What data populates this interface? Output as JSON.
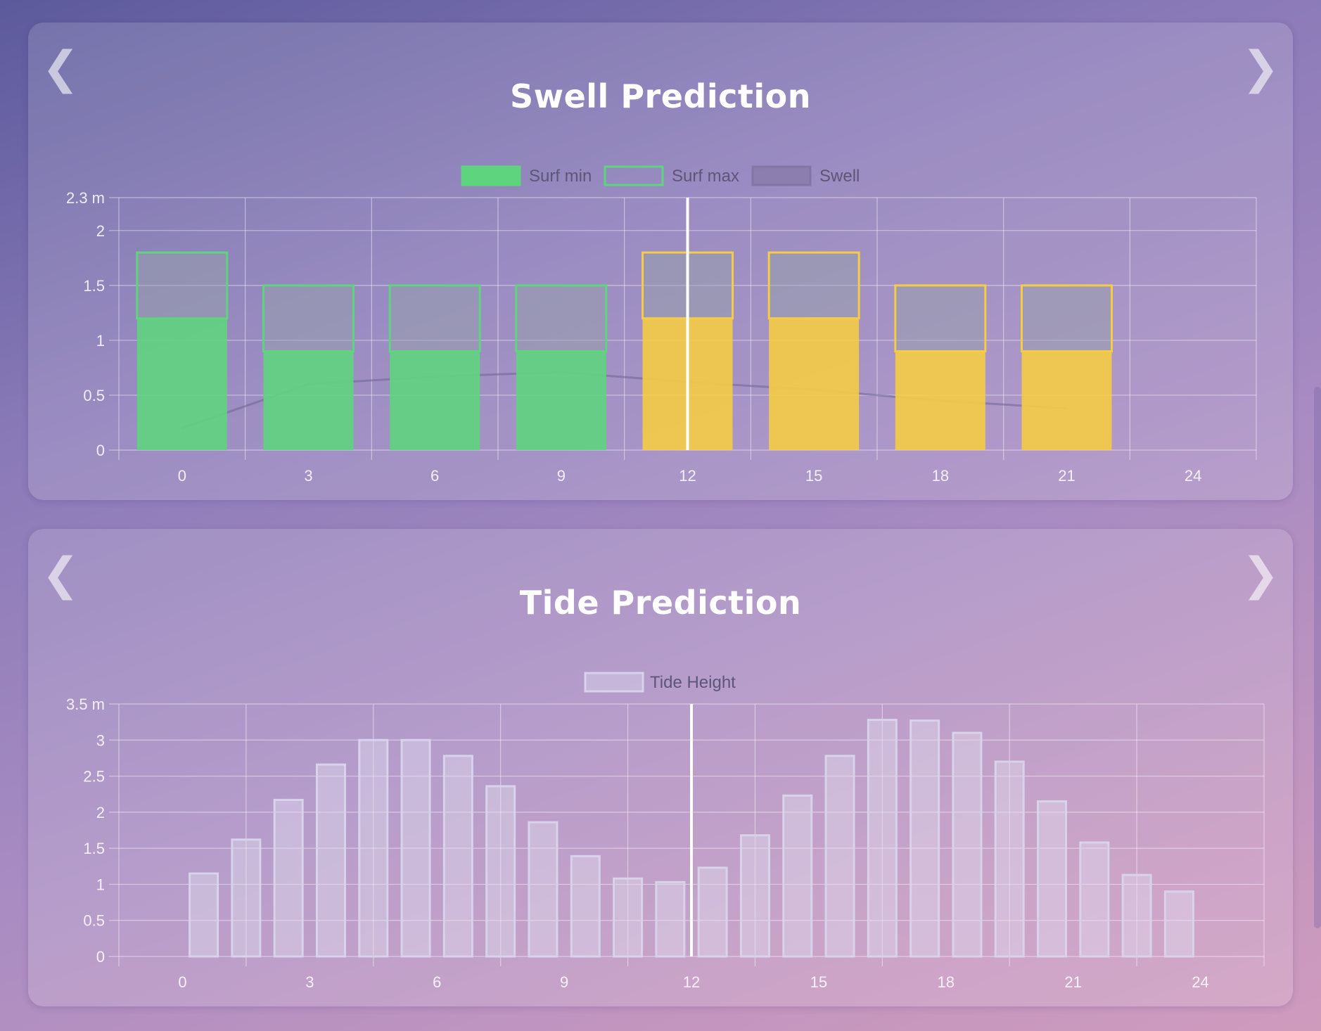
{
  "chart_data": [
    {
      "type": "bar",
      "title": "Swell Prediction",
      "xlabel": "",
      "ylabel": "",
      "x_ticks": [
        "0",
        "3",
        "6",
        "9",
        "12",
        "15",
        "18",
        "21",
        "24"
      ],
      "y_ticks": [
        "0",
        "0.5",
        "1",
        "1.5",
        "2",
        "2.3 m"
      ],
      "ylim": [
        0,
        2.3
      ],
      "xlim": [
        -1.5,
        25.5
      ],
      "current_hour": 12,
      "series": [
        {
          "name": "Surf min",
          "x": [
            0,
            3,
            6,
            9,
            12,
            15,
            18,
            21
          ],
          "values": [
            1.2,
            0.9,
            0.9,
            0.9,
            1.2,
            1.2,
            0.9,
            0.9
          ]
        },
        {
          "name": "Surf max",
          "x": [
            0,
            3,
            6,
            9,
            12,
            15,
            18,
            21
          ],
          "values": [
            1.8,
            1.5,
            1.5,
            1.5,
            1.8,
            1.8,
            1.5,
            1.5
          ]
        },
        {
          "name": "Swell",
          "x": [
            0,
            3,
            6,
            9,
            12,
            15,
            18,
            21
          ],
          "values": [
            0.2,
            0.6,
            0.67,
            0.71,
            0.62,
            0.55,
            0.45,
            0.38
          ]
        }
      ],
      "bar_status": [
        "good",
        "good",
        "good",
        "good",
        "fair",
        "fair",
        "fair",
        "fair"
      ],
      "legend": [
        "Surf min",
        "Surf max",
        "Swell"
      ],
      "legend_position": "top"
    },
    {
      "type": "bar",
      "title": "Tide Prediction",
      "xlabel": "",
      "ylabel": "",
      "x_ticks": [
        "0",
        "3",
        "6",
        "9",
        "12",
        "15",
        "18",
        "21",
        "24"
      ],
      "y_ticks": [
        "0",
        "0.5",
        "1",
        "1.5",
        "2",
        "2.5",
        "3",
        "3.5 m"
      ],
      "ylim": [
        0,
        3.5
      ],
      "xlim": [
        -1.5,
        25.5
      ],
      "current_hour": 12,
      "series": [
        {
          "name": "Tide Height",
          "x": [
            0,
            1,
            2,
            3,
            4,
            5,
            6,
            7,
            8,
            9,
            10,
            11,
            12,
            13,
            14,
            15,
            16,
            17,
            18,
            19,
            20,
            21,
            22,
            23
          ],
          "values": [
            1.15,
            1.62,
            2.17,
            2.66,
            3.0,
            3.0,
            2.78,
            2.36,
            1.86,
            1.39,
            1.08,
            1.03,
            1.23,
            1.68,
            2.23,
            2.78,
            3.28,
            3.27,
            3.1,
            2.7,
            2.15,
            1.58,
            1.13,
            0.9
          ]
        }
      ],
      "legend": [
        "Tide Height"
      ],
      "legend_position": "top"
    }
  ],
  "colors": {
    "good": "#5fd47f",
    "fair": "#f5cc45",
    "swell": "#7f75a0",
    "tide": "#d8d2ea",
    "grid": "rgba(255,255,255,0.45)",
    "axis_text": "rgba(255,255,255,0.85)",
    "legend_text": "#5e5677"
  },
  "nav": {
    "prev": "❮",
    "next": "❯"
  }
}
